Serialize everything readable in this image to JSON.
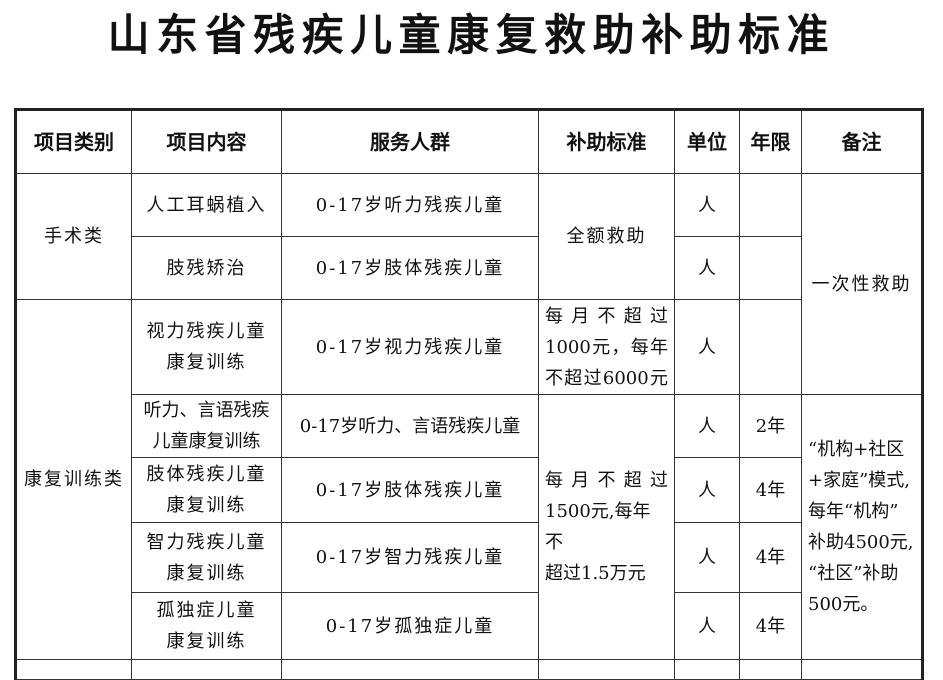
{
  "title": "山东省残疾儿童康复救助补助标准",
  "headers": [
    "项目类别",
    "项目内容",
    "服务人群",
    "补助标准",
    "单位",
    "年限",
    "备注"
  ],
  "categories": [
    "手术类",
    "康复训练类"
  ],
  "rows": [
    {
      "content": "人工耳蜗植入",
      "group": "0-17岁听力残疾儿童",
      "unit": "人",
      "years": ""
    },
    {
      "content": "肢残矫治",
      "group": "0-17岁肢体残疾儿童",
      "unit": "人",
      "years": ""
    },
    {
      "content_l1": "视力残疾儿童",
      "content_l2": "康复训练",
      "group": "0-17岁视力残疾儿童",
      "unit": "人",
      "years": ""
    },
    {
      "content_l1": "听力、言语残疾",
      "content_l2": "儿童康复训练",
      "group": "0-17岁听力、言语残疾儿童",
      "unit": "人",
      "years": "2年"
    },
    {
      "content_l1": "肢体残疾儿童",
      "content_l2": "康复训练",
      "group": "0-17岁肢体残疾儿童",
      "unit": "人",
      "years": "4年"
    },
    {
      "content_l1": "智力残疾儿童",
      "content_l2": "康复训练",
      "group": "0-17岁智力残疾儿童",
      "unit": "人",
      "years": "4年"
    },
    {
      "content_l1": "孤独症儿童",
      "content_l2": "康复训练",
      "group": "0-17岁孤独症儿童",
      "unit": "人",
      "years": "4年"
    }
  ],
  "subsidies": {
    "surgery": "全额救助",
    "vision_l1": "每月不超过",
    "vision_l2": "1000元，每年",
    "vision_l3": "不超过6000元",
    "training_l1": "每月不超过",
    "training_l2": "1500元,每年不",
    "training_l3": "超过1.5万元"
  },
  "notes": {
    "one_time": "一次性救助",
    "model_l1": "“机构+社区",
    "model_l2": "+家庭”模式,",
    "model_l3": "每年“机构”",
    "model_l4": "补助4500元,",
    "model_l5": "“社区”补助",
    "model_l6": "500元。"
  }
}
